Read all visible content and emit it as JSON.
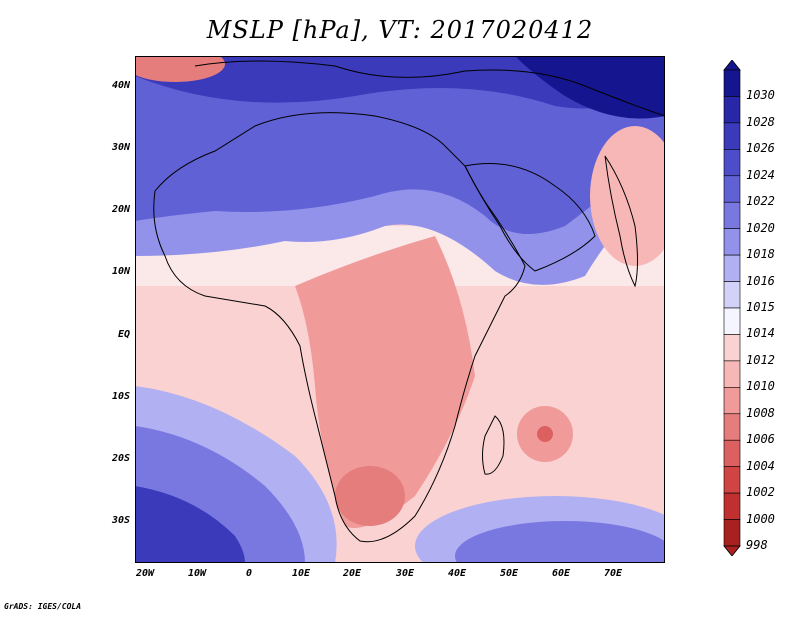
{
  "title": "MSLP [hPa], VT: 2017020412",
  "credit": "GrADS: IGES/COLA",
  "latitude_labels": [
    "40N",
    "30N",
    "20N",
    "10N",
    "EQ",
    "10S",
    "20S",
    "30S"
  ],
  "longitude_labels": [
    "20W",
    "10W",
    "0",
    "10E",
    "20E",
    "30E",
    "40E",
    "50E",
    "60E",
    "70E"
  ],
  "colorbar": {
    "levels": [
      "1030",
      "1028",
      "1026",
      "1024",
      "1022",
      "1020",
      "1018",
      "1016",
      "1015",
      "1014",
      "1012",
      "1010",
      "1008",
      "1006",
      "1004",
      "1002",
      "1000",
      "998"
    ],
    "colors": [
      "#15158f",
      "#2727a8",
      "#3a3abb",
      "#4d4dca",
      "#6161d6",
      "#7878e0",
      "#9292ea",
      "#b0b0f2",
      "#d2d2f8",
      "#f5f5ff",
      "#fad2d2",
      "#f7b7b7",
      "#f09a9a",
      "#e67d7d",
      "#dc6060",
      "#d04444",
      "#c03030",
      "#a82020"
    ]
  },
  "map": {
    "description_region": "Africa and surrounding oceans",
    "feature_low_center": "Mascarene low near 56E 16S"
  }
}
